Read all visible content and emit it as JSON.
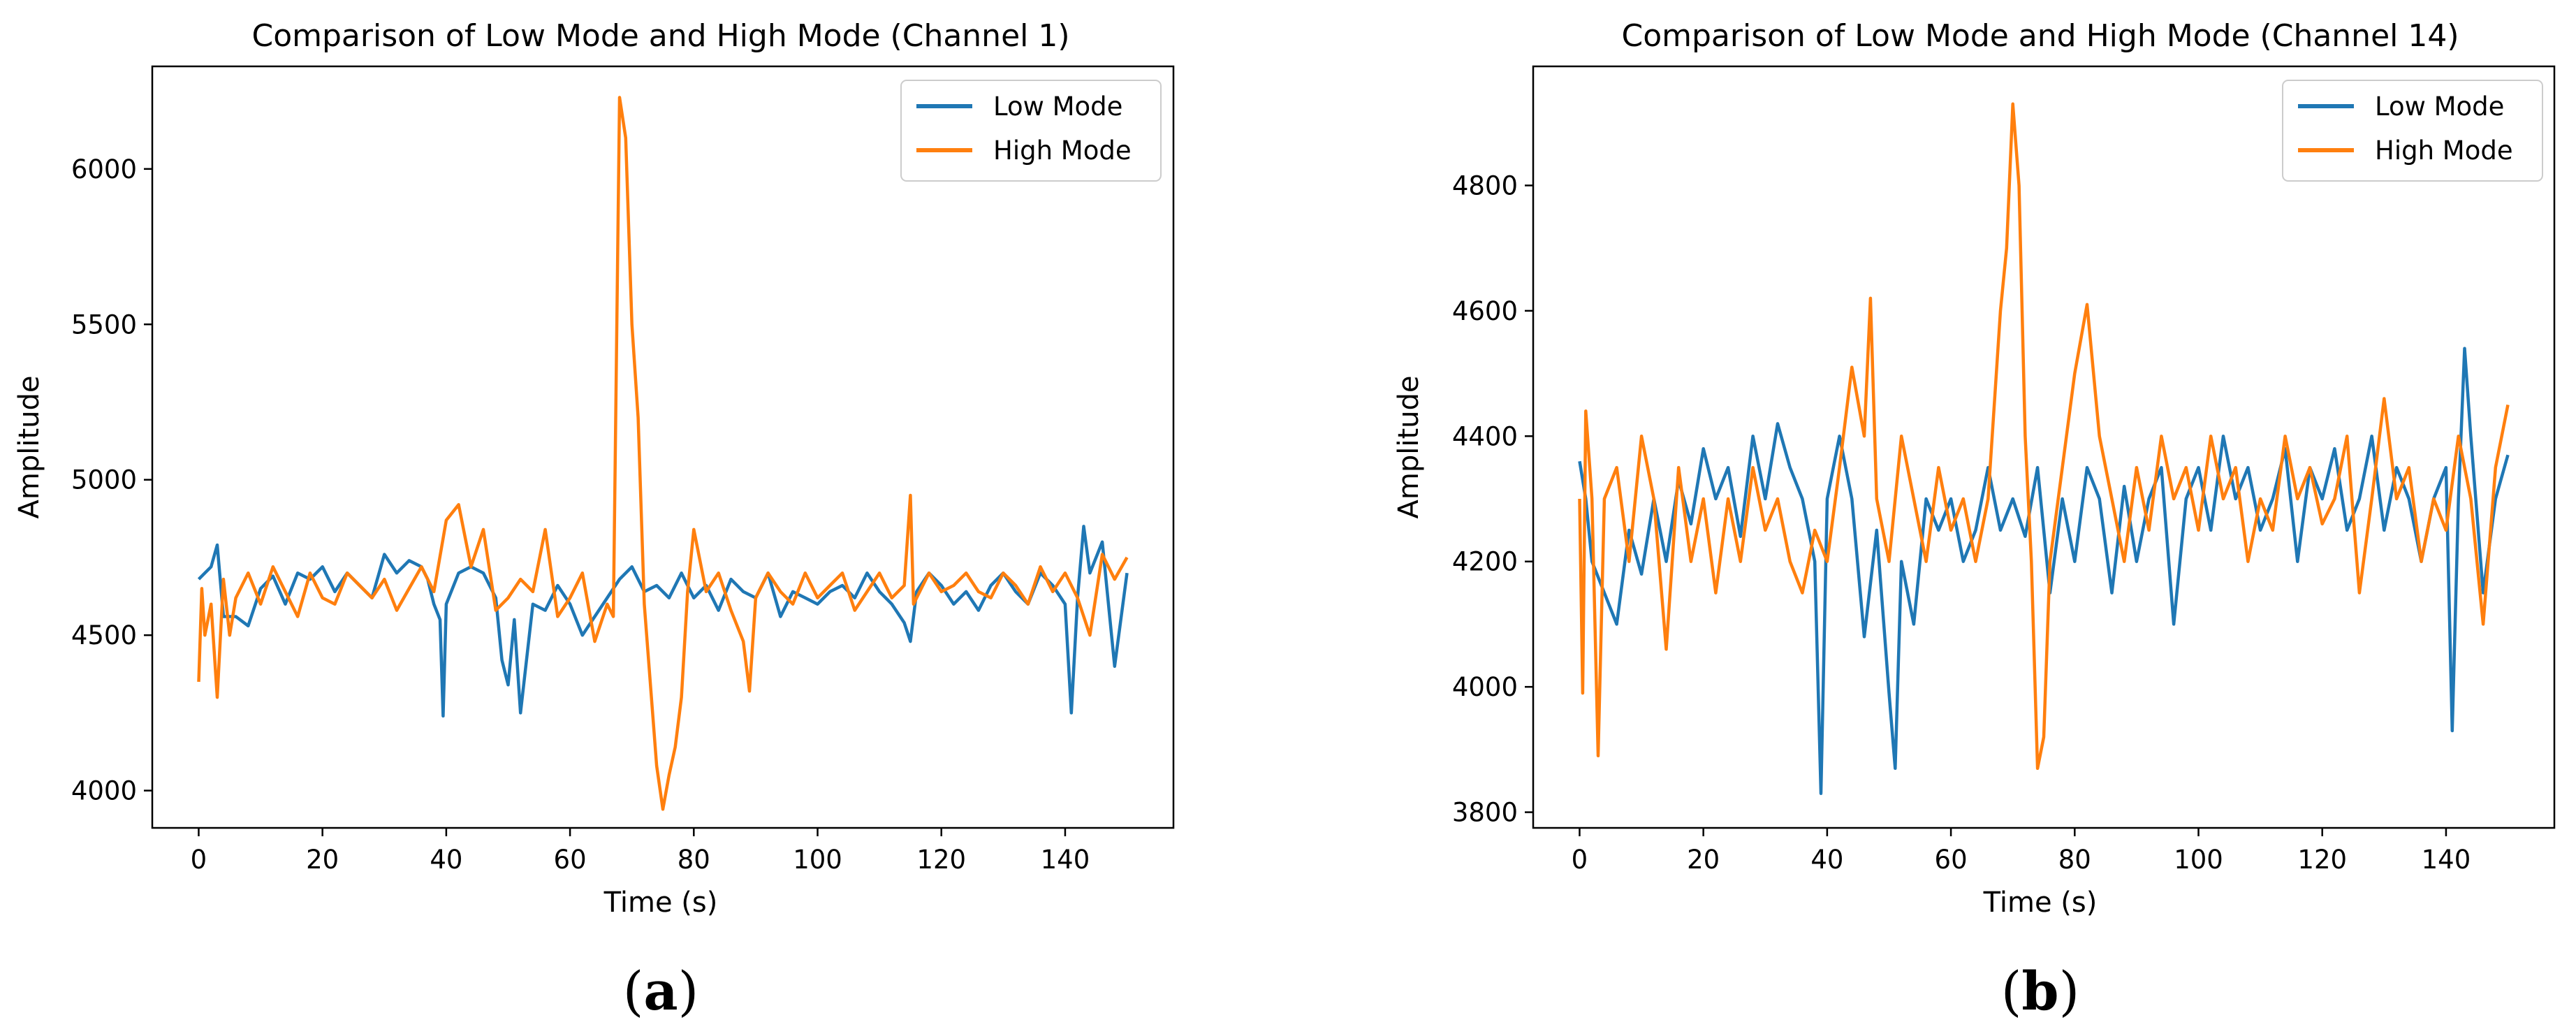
{
  "colors": {
    "low_mode": "#1f77b4",
    "high_mode": "#ff7f0e",
    "axis": "#000000",
    "background": "#ffffff"
  },
  "chart_data": [
    {
      "type": "line",
      "panel": "a",
      "title": "Comparison of Low Mode and High Mode (Channel 1)",
      "xlabel": "Time (s)",
      "ylabel": "Amplitude",
      "xlim": [
        -7.5,
        157.5
      ],
      "ylim": [
        3880,
        6330
      ],
      "xticks": [
        0,
        20,
        40,
        60,
        80,
        100,
        120,
        140
      ],
      "yticks": [
        4000,
        4500,
        5000,
        5500,
        6000
      ],
      "legend": {
        "placement": "top-right",
        "entries": [
          "Low Mode",
          "High Mode"
        ]
      },
      "series": [
        {
          "name": "Low Mode",
          "color": "#1f77b4",
          "x": [
            0,
            1,
            2,
            3,
            4,
            6,
            8,
            10,
            12,
            14,
            16,
            18,
            20,
            22,
            24,
            26,
            28,
            30,
            32,
            34,
            36,
            37,
            38,
            39,
            39.5,
            40,
            42,
            44,
            46,
            48,
            49,
            50,
            51,
            52,
            54,
            56,
            58,
            60,
            62,
            64,
            66,
            68,
            70,
            72,
            74,
            76,
            78,
            80,
            82,
            84,
            86,
            88,
            90,
            92,
            94,
            96,
            98,
            100,
            102,
            104,
            106,
            108,
            110,
            112,
            114,
            115,
            116,
            118,
            120,
            122,
            124,
            126,
            128,
            130,
            132,
            134,
            136,
            138,
            140,
            141,
            142,
            143,
            144,
            146,
            148,
            150
          ],
          "values": [
            4680,
            4700,
            4720,
            4790,
            4560,
            4560,
            4530,
            4650,
            4690,
            4600,
            4700,
            4680,
            4720,
            4640,
            4700,
            4660,
            4620,
            4760,
            4700,
            4740,
            4720,
            4680,
            4600,
            4550,
            4240,
            4600,
            4700,
            4720,
            4700,
            4620,
            4420,
            4340,
            4550,
            4250,
            4600,
            4580,
            4660,
            4600,
            4500,
            4560,
            4620,
            4680,
            4720,
            4640,
            4660,
            4620,
            4700,
            4620,
            4660,
            4580,
            4680,
            4640,
            4620,
            4700,
            4560,
            4640,
            4620,
            4600,
            4640,
            4660,
            4620,
            4700,
            4640,
            4600,
            4540,
            4480,
            4640,
            4700,
            4660,
            4600,
            4640,
            4580,
            4660,
            4700,
            4640,
            4600,
            4700,
            4660,
            4600,
            4250,
            4620,
            4850,
            4700,
            4800,
            4400,
            4700
          ]
        },
        {
          "name": "High Mode",
          "color": "#ff7f0e",
          "x": [
            0,
            0.5,
            1,
            2,
            3,
            4,
            5,
            6,
            8,
            10,
            12,
            14,
            16,
            18,
            20,
            22,
            24,
            26,
            28,
            30,
            32,
            34,
            36,
            38,
            40,
            42,
            44,
            46,
            48,
            50,
            52,
            54,
            56,
            58,
            60,
            62,
            64,
            66,
            67,
            68,
            69,
            70,
            71,
            72,
            74,
            75,
            76,
            77,
            78,
            79,
            80,
            82,
            84,
            86,
            88,
            89,
            90,
            92,
            94,
            96,
            98,
            100,
            102,
            104,
            106,
            108,
            110,
            112,
            114,
            115,
            115.5,
            116,
            118,
            120,
            122,
            124,
            126,
            128,
            130,
            132,
            134,
            136,
            138,
            140,
            142,
            144,
            146,
            148,
            150
          ],
          "values": [
            4350,
            4650,
            4500,
            4600,
            4300,
            4680,
            4500,
            4620,
            4700,
            4600,
            4720,
            4640,
            4560,
            4700,
            4620,
            4600,
            4700,
            4660,
            4620,
            4680,
            4580,
            4650,
            4720,
            4640,
            4870,
            4920,
            4720,
            4840,
            4580,
            4620,
            4680,
            4640,
            4840,
            4560,
            4620,
            4700,
            4480,
            4600,
            4560,
            6230,
            6100,
            5500,
            5200,
            4600,
            4080,
            3940,
            4050,
            4140,
            4300,
            4640,
            4840,
            4640,
            4700,
            4580,
            4480,
            4320,
            4620,
            4700,
            4640,
            4600,
            4700,
            4620,
            4660,
            4700,
            4580,
            4640,
            4700,
            4620,
            4660,
            4950,
            4600,
            4620,
            4700,
            4640,
            4660,
            4700,
            4640,
            4620,
            4700,
            4660,
            4600,
            4720,
            4640,
            4700,
            4620,
            4500,
            4760,
            4680,
            4750
          ]
        }
      ]
    },
    {
      "type": "line",
      "panel": "b",
      "title": "Comparison of Low Mode and High Mode (Channel 14)",
      "xlabel": "Time (s)",
      "ylabel": "Amplitude",
      "xlim": [
        -7.5,
        157.5
      ],
      "ylim": [
        3775,
        4990
      ],
      "xticks": [
        0,
        20,
        40,
        60,
        80,
        100,
        120,
        140
      ],
      "yticks": [
        3800,
        4000,
        4200,
        4400,
        4600,
        4800
      ],
      "legend": {
        "placement": "top-right",
        "entries": [
          "Low Mode",
          "High Mode"
        ]
      },
      "series": [
        {
          "name": "Low Mode",
          "color": "#1f77b4",
          "x": [
            0,
            1,
            2,
            4,
            6,
            8,
            10,
            12,
            14,
            16,
            18,
            20,
            22,
            24,
            26,
            28,
            30,
            32,
            34,
            36,
            38,
            39,
            40,
            42,
            44,
            46,
            48,
            50,
            51,
            52,
            54,
            56,
            58,
            60,
            62,
            64,
            66,
            68,
            70,
            72,
            74,
            76,
            78,
            80,
            82,
            84,
            86,
            88,
            90,
            92,
            94,
            96,
            98,
            100,
            102,
            104,
            106,
            108,
            110,
            112,
            114,
            116,
            118,
            120,
            122,
            124,
            126,
            128,
            130,
            132,
            134,
            136,
            138,
            140,
            141,
            142,
            143,
            144,
            146,
            148,
            150
          ],
          "values": [
            4360,
            4300,
            4200,
            4150,
            4100,
            4250,
            4180,
            4300,
            4200,
            4330,
            4260,
            4380,
            4300,
            4350,
            4240,
            4400,
            4300,
            4420,
            4350,
            4300,
            4200,
            3830,
            4300,
            4400,
            4300,
            4080,
            4250,
            3990,
            3870,
            4200,
            4100,
            4300,
            4250,
            4300,
            4200,
            4250,
            4350,
            4250,
            4300,
            4240,
            4350,
            4150,
            4300,
            4200,
            4350,
            4300,
            4150,
            4320,
            4200,
            4300,
            4350,
            4100,
            4300,
            4350,
            4250,
            4400,
            4300,
            4350,
            4250,
            4300,
            4380,
            4200,
            4350,
            4300,
            4380,
            4250,
            4300,
            4400,
            4250,
            4350,
            4300,
            4200,
            4300,
            4350,
            3930,
            4300,
            4540,
            4400,
            4150,
            4300,
            4370
          ]
        },
        {
          "name": "High Mode",
          "color": "#ff7f0e",
          "x": [
            0,
            0.5,
            1,
            2,
            3,
            4,
            6,
            8,
            10,
            12,
            14,
            16,
            18,
            20,
            22,
            24,
            26,
            28,
            30,
            32,
            34,
            36,
            38,
            40,
            42,
            44,
            46,
            47,
            48,
            50,
            52,
            54,
            56,
            58,
            60,
            62,
            64,
            66,
            68,
            69,
            70,
            71,
            72,
            73,
            74,
            75,
            76,
            78,
            80,
            82,
            84,
            86,
            88,
            90,
            92,
            94,
            96,
            98,
            100,
            102,
            104,
            106,
            108,
            110,
            112,
            114,
            116,
            118,
            120,
            122,
            124,
            126,
            128,
            130,
            132,
            134,
            136,
            138,
            140,
            142,
            144,
            146,
            148,
            150
          ],
          "values": [
            4300,
            3990,
            4440,
            4300,
            3890,
            4300,
            4350,
            4200,
            4400,
            4300,
            4060,
            4350,
            4200,
            4300,
            4150,
            4300,
            4200,
            4350,
            4250,
            4300,
            4200,
            4150,
            4250,
            4200,
            4350,
            4510,
            4400,
            4620,
            4300,
            4200,
            4400,
            4300,
            4200,
            4350,
            4250,
            4300,
            4200,
            4300,
            4600,
            4700,
            4930,
            4800,
            4400,
            4200,
            3870,
            3920,
            4200,
            4350,
            4500,
            4610,
            4400,
            4300,
            4200,
            4350,
            4250,
            4400,
            4300,
            4350,
            4250,
            4400,
            4300,
            4350,
            4200,
            4300,
            4250,
            4400,
            4300,
            4350,
            4260,
            4300,
            4400,
            4150,
            4300,
            4460,
            4300,
            4350,
            4200,
            4300,
            4250,
            4400,
            4300,
            4100,
            4350,
            4450
          ]
        }
      ]
    }
  ],
  "panels": [
    {
      "label": "a"
    },
    {
      "label": "b"
    }
  ]
}
